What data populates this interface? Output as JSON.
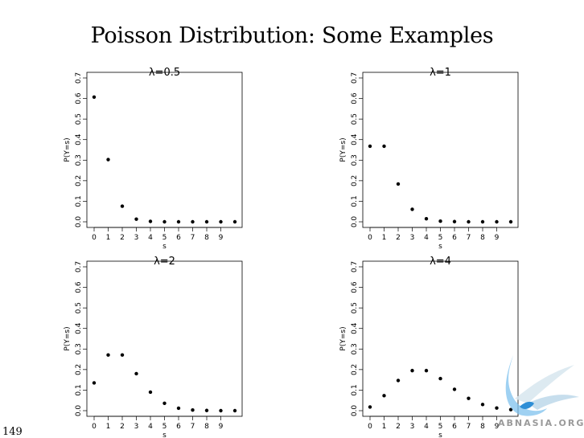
{
  "page": {
    "title": "Poisson Distribution: Some Examples",
    "page_number": "149"
  },
  "watermark": {
    "text": "ABNASIA.ORG",
    "color": "#4aa3e0"
  },
  "chart_data": [
    {
      "type": "scatter",
      "title": "λ=0.5",
      "xlabel": "s",
      "ylabel": "P(Y=s)",
      "x": [
        0,
        1,
        2,
        3,
        4,
        5,
        6,
        7,
        8,
        9,
        10
      ],
      "y": [
        0.607,
        0.303,
        0.076,
        0.013,
        0.002,
        0,
        0,
        0,
        0,
        0,
        0
      ],
      "xticks": [
        "0",
        "1",
        "2",
        "3",
        "4",
        "5",
        "6",
        "7",
        "8",
        "9"
      ],
      "yticks": [
        "0.0",
        "0.1",
        "0.2",
        "0.3",
        "0.4",
        "0.5",
        "0.6",
        "0.7"
      ],
      "xlim": [
        0,
        10
      ],
      "ylim": [
        0,
        0.7
      ]
    },
    {
      "type": "scatter",
      "title": "λ=1",
      "xlabel": "s",
      "ylabel": "P(Y=s)",
      "x": [
        0,
        1,
        2,
        3,
        4,
        5,
        6,
        7,
        8,
        9,
        10
      ],
      "y": [
        0.368,
        0.368,
        0.184,
        0.061,
        0.015,
        0.003,
        0.001,
        0,
        0,
        0,
        0
      ],
      "xticks": [
        "0",
        "1",
        "2",
        "3",
        "4",
        "5",
        "6",
        "7",
        "8",
        "9"
      ],
      "yticks": [
        "0.0",
        "0.1",
        "0.2",
        "0.3",
        "0.4",
        "0.5",
        "0.6",
        "0.7"
      ],
      "xlim": [
        0,
        10
      ],
      "ylim": [
        0,
        0.7
      ]
    },
    {
      "type": "scatter",
      "title": "λ=2",
      "xlabel": "s",
      "ylabel": "P(Y=s)",
      "x": [
        0,
        1,
        2,
        3,
        4,
        5,
        6,
        7,
        8,
        9,
        10
      ],
      "y": [
        0.135,
        0.271,
        0.271,
        0.18,
        0.09,
        0.036,
        0.012,
        0.003,
        0.001,
        0,
        0
      ],
      "xticks": [
        "0",
        "1",
        "2",
        "3",
        "4",
        "5",
        "6",
        "7",
        "8",
        "9"
      ],
      "yticks": [
        "0.0",
        "0.1",
        "0.2",
        "0.3",
        "0.4",
        "0.5",
        "0.6",
        "0.7"
      ],
      "xlim": [
        0,
        10
      ],
      "ylim": [
        0,
        0.7
      ]
    },
    {
      "type": "scatter",
      "title": "λ=4",
      "xlabel": "s",
      "ylabel": "P(Y=s)",
      "x": [
        0,
        1,
        2,
        3,
        4,
        5,
        6,
        7,
        8,
        9,
        10
      ],
      "y": [
        0.018,
        0.073,
        0.147,
        0.195,
        0.195,
        0.156,
        0.104,
        0.06,
        0.03,
        0.013,
        0.005
      ],
      "xticks": [
        "0",
        "1",
        "2",
        "3",
        "4",
        "5",
        "6",
        "7",
        "8",
        "9"
      ],
      "yticks": [
        "0.0",
        "0.1",
        "0.2",
        "0.3",
        "0.4",
        "0.5",
        "0.6",
        "0.7"
      ],
      "xlim": [
        0,
        10
      ],
      "ylim": [
        0,
        0.7
      ]
    }
  ]
}
